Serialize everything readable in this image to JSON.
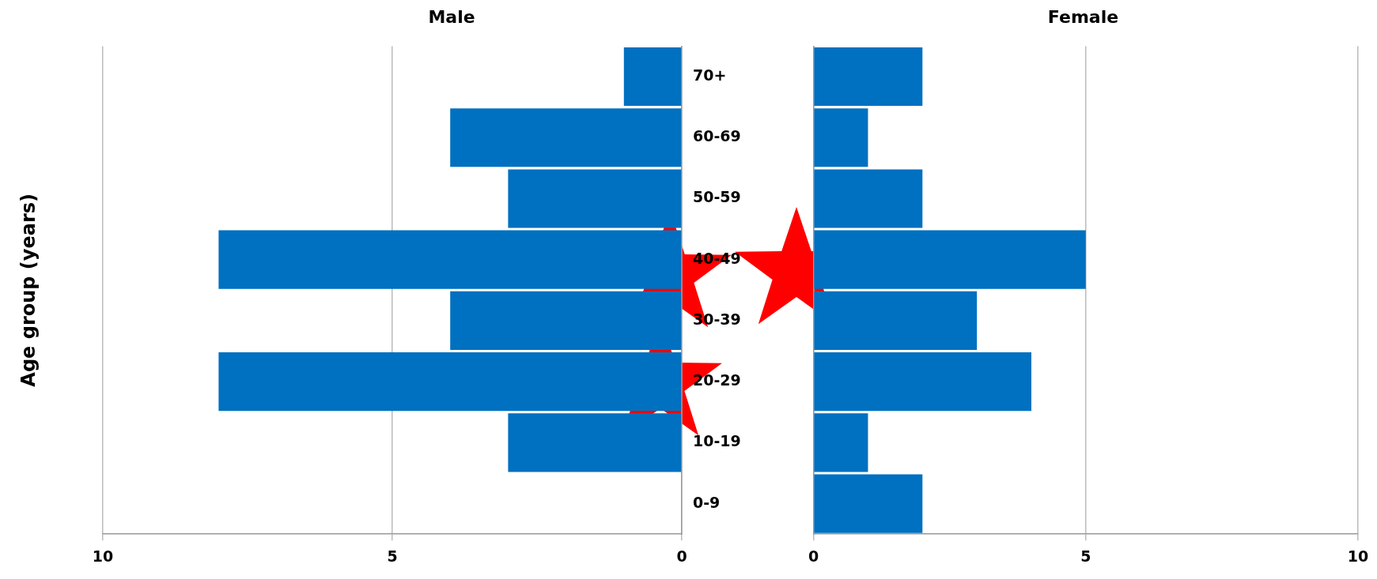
{
  "chart_data": [
    {
      "type": "bar",
      "orientation": "horizontal",
      "title": "Male",
      "ylabel": "Age group (years)",
      "categories": [
        "70+",
        "60-69",
        "50-59",
        "40-49",
        "30-39",
        "20-29",
        "10-19",
        "0-9"
      ],
      "values": [
        1,
        4,
        3,
        8,
        4,
        8,
        3,
        0
      ],
      "color": "#0070c0",
      "xlim": [
        10,
        0
      ],
      "xticks": [
        10,
        5,
        0
      ],
      "grid": "x",
      "legend": false
    },
    {
      "type": "bar",
      "orientation": "horizontal",
      "title": "Female",
      "categories": [
        null,
        null,
        null,
        null,
        null,
        null,
        null,
        null
      ],
      "values": [
        2,
        1,
        2,
        5,
        3,
        4,
        1,
        2
      ],
      "color": "#0070c0",
      "xlim": [
        0,
        10
      ],
      "xticks": [
        0,
        5,
        10
      ],
      "grid": "x",
      "legend": false,
      "tick_labels": "x"
    }
  ]
}
